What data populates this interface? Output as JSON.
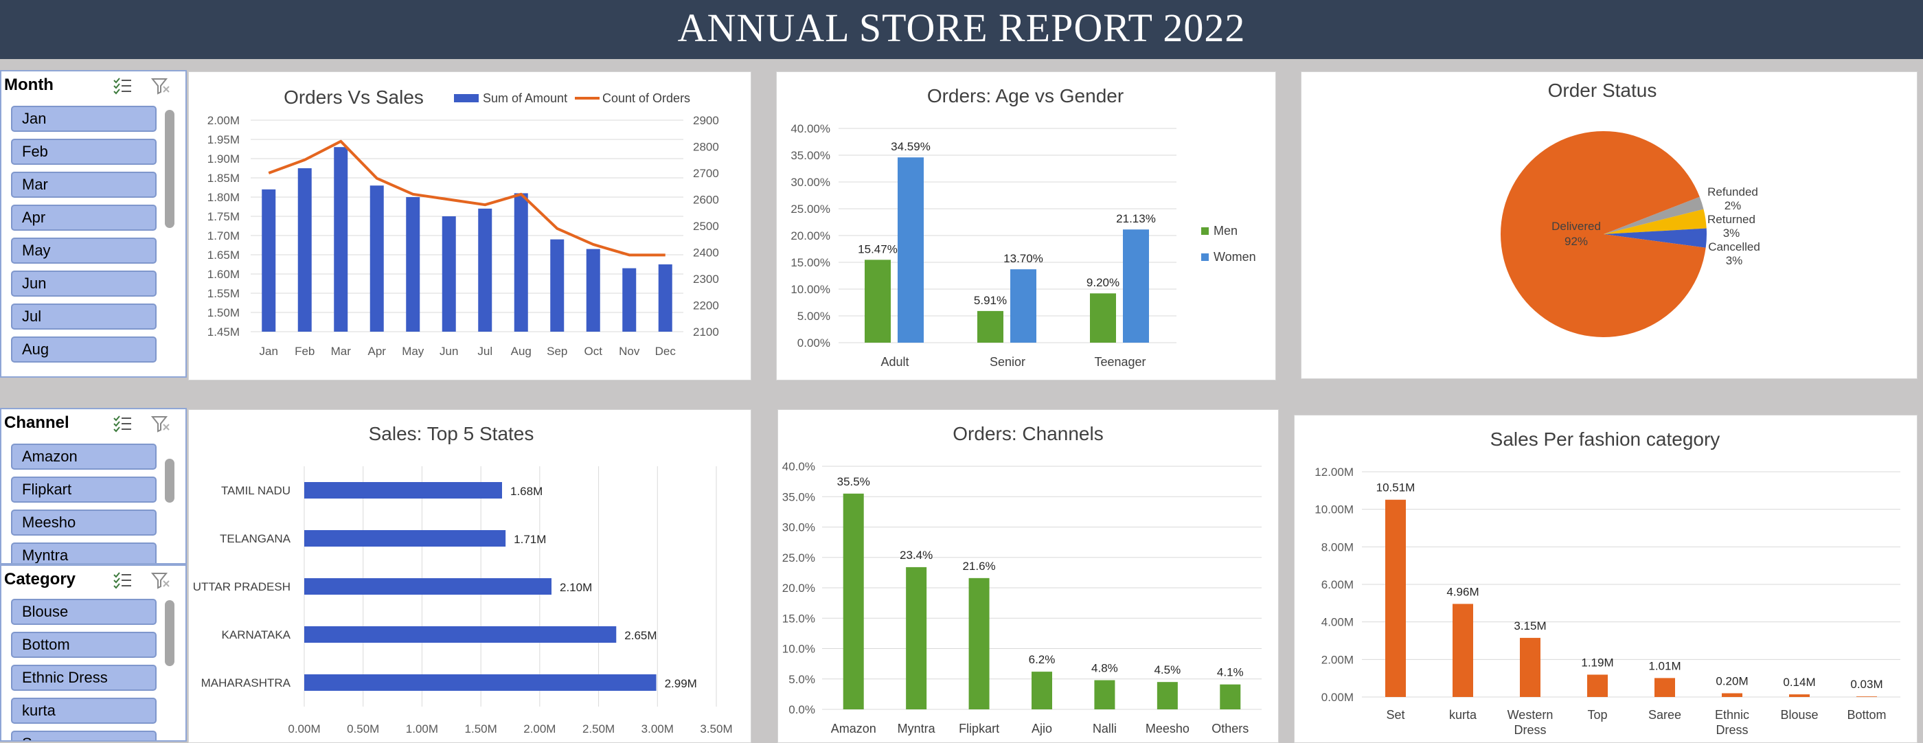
{
  "title": "ANNUAL STORE REPORT 2022",
  "slicers": {
    "month": {
      "title": "Month",
      "items": [
        "Jan",
        "Feb",
        "Mar",
        "Apr",
        "May",
        "Jun",
        "Jul",
        "Aug"
      ]
    },
    "channel": {
      "title": "Channel",
      "items": [
        "Amazon",
        "Flipkart",
        "Meesho",
        "Myntra"
      ]
    },
    "category": {
      "title": "Category",
      "items": [
        "Blouse",
        "Bottom",
        "Ethnic Dress",
        "kurta",
        "Saree"
      ]
    }
  },
  "colors": {
    "blue": "#3b5cc6",
    "orange": "#e4651f",
    "green": "#5ea232",
    "lightblue": "#4a8bd6",
    "gray": "#a0a0a0",
    "yellow": "#f5b800",
    "banner": "#344257"
  },
  "chart_data": [
    {
      "id": "orders_vs_sales",
      "type": "bar+line",
      "title": "Orders Vs Sales",
      "categories": [
        "Jan",
        "Feb",
        "Mar",
        "Apr",
        "May",
        "Jun",
        "Jul",
        "Aug",
        "Sep",
        "Oct",
        "Nov",
        "Dec"
      ],
      "series": [
        {
          "name": "Sum of Amount",
          "type": "bar",
          "axis": "left",
          "values": [
            1.82,
            1.875,
            1.93,
            1.83,
            1.8,
            1.75,
            1.77,
            1.81,
            1.69,
            1.665,
            1.615,
            1.625
          ]
        },
        {
          "name": "Count of Orders",
          "type": "line",
          "axis": "right",
          "values": [
            2700,
            2750,
            2820,
            2680,
            2620,
            2600,
            2580,
            2620,
            2490,
            2430,
            2390,
            2390
          ]
        }
      ],
      "ylim_left": [
        1.45,
        2.0
      ],
      "yticks_left": [
        "1.45M",
        "1.50M",
        "1.55M",
        "1.60M",
        "1.65M",
        "1.70M",
        "1.75M",
        "1.80M",
        "1.85M",
        "1.90M",
        "1.95M",
        "2.00M"
      ],
      "ylim_right": [
        2100,
        2900
      ],
      "yticks_right": [
        "2100",
        "2200",
        "2300",
        "2400",
        "2500",
        "2600",
        "2700",
        "2800",
        "2900"
      ],
      "legend": "top-right"
    },
    {
      "id": "age_gender",
      "type": "bar",
      "title": "Orders: Age vs Gender",
      "categories": [
        "Adult",
        "Senior",
        "Teenager"
      ],
      "series": [
        {
          "name": "Men",
          "values": [
            15.47,
            5.91,
            9.2
          ],
          "labels": [
            "15.47%",
            "5.91%",
            "9.20%"
          ]
        },
        {
          "name": "Women",
          "values": [
            34.59,
            13.7,
            21.13
          ],
          "labels": [
            "34.59%",
            "13.70%",
            "21.13%"
          ]
        }
      ],
      "ylim": [
        0,
        40
      ],
      "yticks": [
        "0.00%",
        "5.00%",
        "10.00%",
        "15.00%",
        "20.00%",
        "25.00%",
        "30.00%",
        "35.00%",
        "40.00%"
      ],
      "legend": "right"
    },
    {
      "id": "order_status",
      "type": "pie",
      "title": "Order Status",
      "labels": [
        "Delivered",
        "Refunded",
        "Returned",
        "Cancelled"
      ],
      "values": [
        92,
        2,
        3,
        3
      ],
      "value_labels": [
        "92%",
        "2%",
        "3%",
        "3%"
      ]
    },
    {
      "id": "top_states",
      "type": "barh",
      "title": "Sales: Top 5 States",
      "categories": [
        "TAMIL NADU",
        "TELANGANA",
        "UTTAR PRADESH",
        "KARNATAKA",
        "MAHARASHTRA"
      ],
      "values": [
        1.68,
        1.71,
        2.1,
        2.65,
        2.99
      ],
      "labels": [
        "1.68M",
        "1.71M",
        "2.10M",
        "2.65M",
        "2.99M"
      ],
      "xlim": [
        0,
        3.5
      ],
      "xticks": [
        "0.00M",
        "0.50M",
        "1.00M",
        "1.50M",
        "2.00M",
        "2.50M",
        "3.00M",
        "3.50M"
      ]
    },
    {
      "id": "channels",
      "type": "bar",
      "title": "Orders: Channels",
      "categories": [
        "Amazon",
        "Myntra",
        "Flipkart",
        "Ajio",
        "Nalli",
        "Meesho",
        "Others"
      ],
      "values": [
        35.5,
        23.4,
        21.6,
        6.2,
        4.8,
        4.5,
        4.1
      ],
      "labels": [
        "35.5%",
        "23.4%",
        "21.6%",
        "6.2%",
        "4.8%",
        "4.5%",
        "4.1%"
      ],
      "ylim": [
        0,
        40
      ],
      "yticks": [
        "0.0%",
        "5.0%",
        "10.0%",
        "15.0%",
        "20.0%",
        "25.0%",
        "30.0%",
        "35.0%",
        "40.0%"
      ]
    },
    {
      "id": "fashion_category",
      "type": "bar",
      "title": "Sales Per fashion category",
      "categories": [
        "Set",
        "kurta",
        "Western Dress",
        "Top",
        "Saree",
        "Ethnic Dress",
        "Blouse",
        "Bottom"
      ],
      "values": [
        10.51,
        4.96,
        3.15,
        1.19,
        1.01,
        0.2,
        0.14,
        0.03
      ],
      "labels": [
        "10.51M",
        "4.96M",
        "3.15M",
        "1.19M",
        "1.01M",
        "0.20M",
        "0.14M",
        "0.03M"
      ],
      "ylim": [
        0,
        12
      ],
      "yticks": [
        "0.00M",
        "2.00M",
        "4.00M",
        "6.00M",
        "8.00M",
        "10.00M",
        "12.00M"
      ]
    }
  ]
}
